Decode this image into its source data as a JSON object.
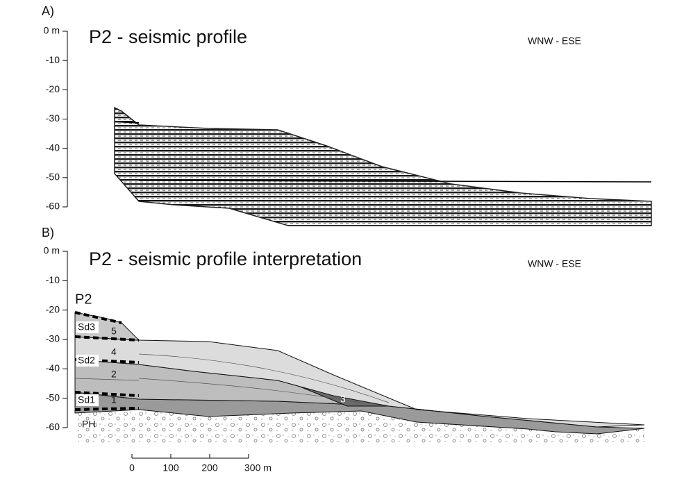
{
  "panels": [
    {
      "label": "A)",
      "title": "P2 - seismic profile",
      "orientation": "WNW - ESE",
      "depth_ticks": [
        "0 m",
        "-10",
        "-20",
        "-30",
        "-40",
        "-50",
        "-60"
      ]
    },
    {
      "label": "B)",
      "title": "P2 - seismic profile interpretation",
      "orientation": "WNW - ESE",
      "depth_ticks": [
        "0 m",
        "-10",
        "-20",
        "-30",
        "-40",
        "-50",
        "-60"
      ],
      "profile_name": "P2",
      "units": [
        "Sd3",
        "Sd2",
        "Sd1"
      ],
      "layers": [
        "5",
        "4",
        "2",
        "1",
        "3"
      ],
      "basement": "PH"
    }
  ],
  "scale_bar": {
    "ticks": [
      "0",
      "100",
      "200",
      "300 m"
    ]
  }
}
